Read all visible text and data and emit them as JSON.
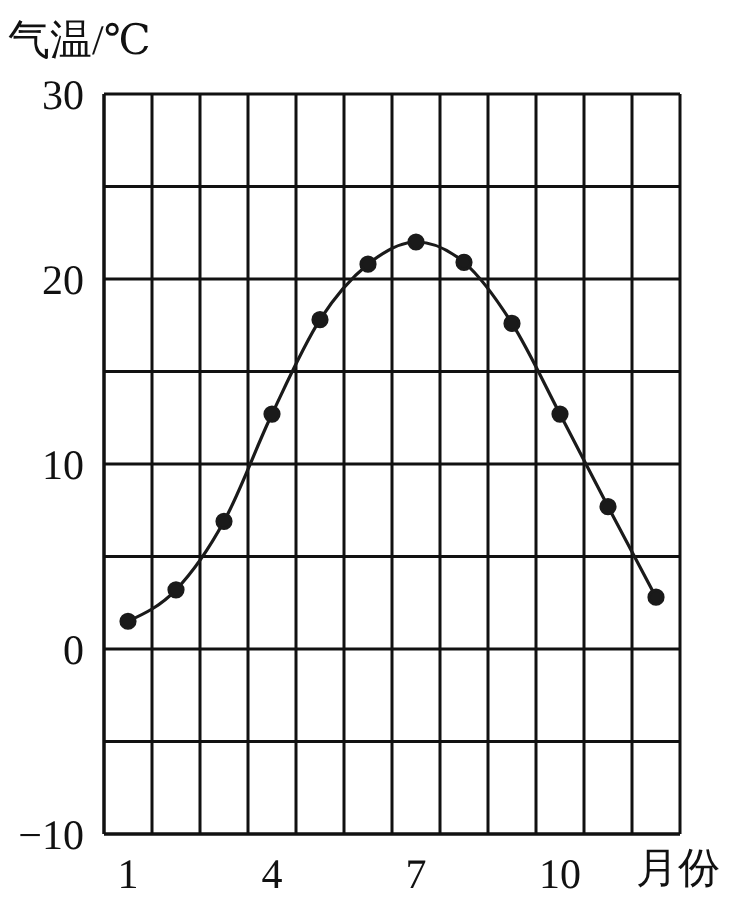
{
  "chart_data": {
    "type": "line",
    "ylabel": "气温/℃",
    "xlabel": "月份",
    "x": [
      1,
      2,
      3,
      4,
      5,
      6,
      7,
      8,
      9,
      10,
      11,
      12
    ],
    "values": [
      1.5,
      3.2,
      6.9,
      12.7,
      17.8,
      20.8,
      22.0,
      20.9,
      17.6,
      12.7,
      7.7,
      2.8
    ],
    "color": "#1a1a1a",
    "marker": "circle",
    "line_style": "solid",
    "grid": true,
    "xlim": [
      0.5,
      12.5
    ],
    "xticks": [
      {
        "value": 0.5,
        "label": null
      },
      1,
      {
        "value": 1.5,
        "label": null
      },
      {
        "value": 2.5,
        "label": null
      },
      {
        "value": 3.5,
        "label": null
      },
      4,
      {
        "value": 4.5,
        "label": null
      },
      {
        "value": 5.5,
        "label": null
      },
      {
        "value": 6.5,
        "label": null
      },
      7,
      {
        "value": 7.5,
        "label": null
      },
      {
        "value": 8.5,
        "label": null
      },
      {
        "value": 9.5,
        "label": null
      },
      10,
      {
        "value": 10.5,
        "label": null
      },
      {
        "value": 11.5,
        "label": null
      },
      {
        "value": 12.5,
        "label": null
      }
    ],
    "ylim": [
      -10,
      30
    ],
    "yticks": [
      -10,
      {
        "value": -5,
        "label": null
      },
      0,
      {
        "value": 5,
        "label": null
      },
      10,
      {
        "value": 15,
        "label": null
      },
      20,
      {
        "value": 25,
        "label": null
      },
      30
    ]
  }
}
